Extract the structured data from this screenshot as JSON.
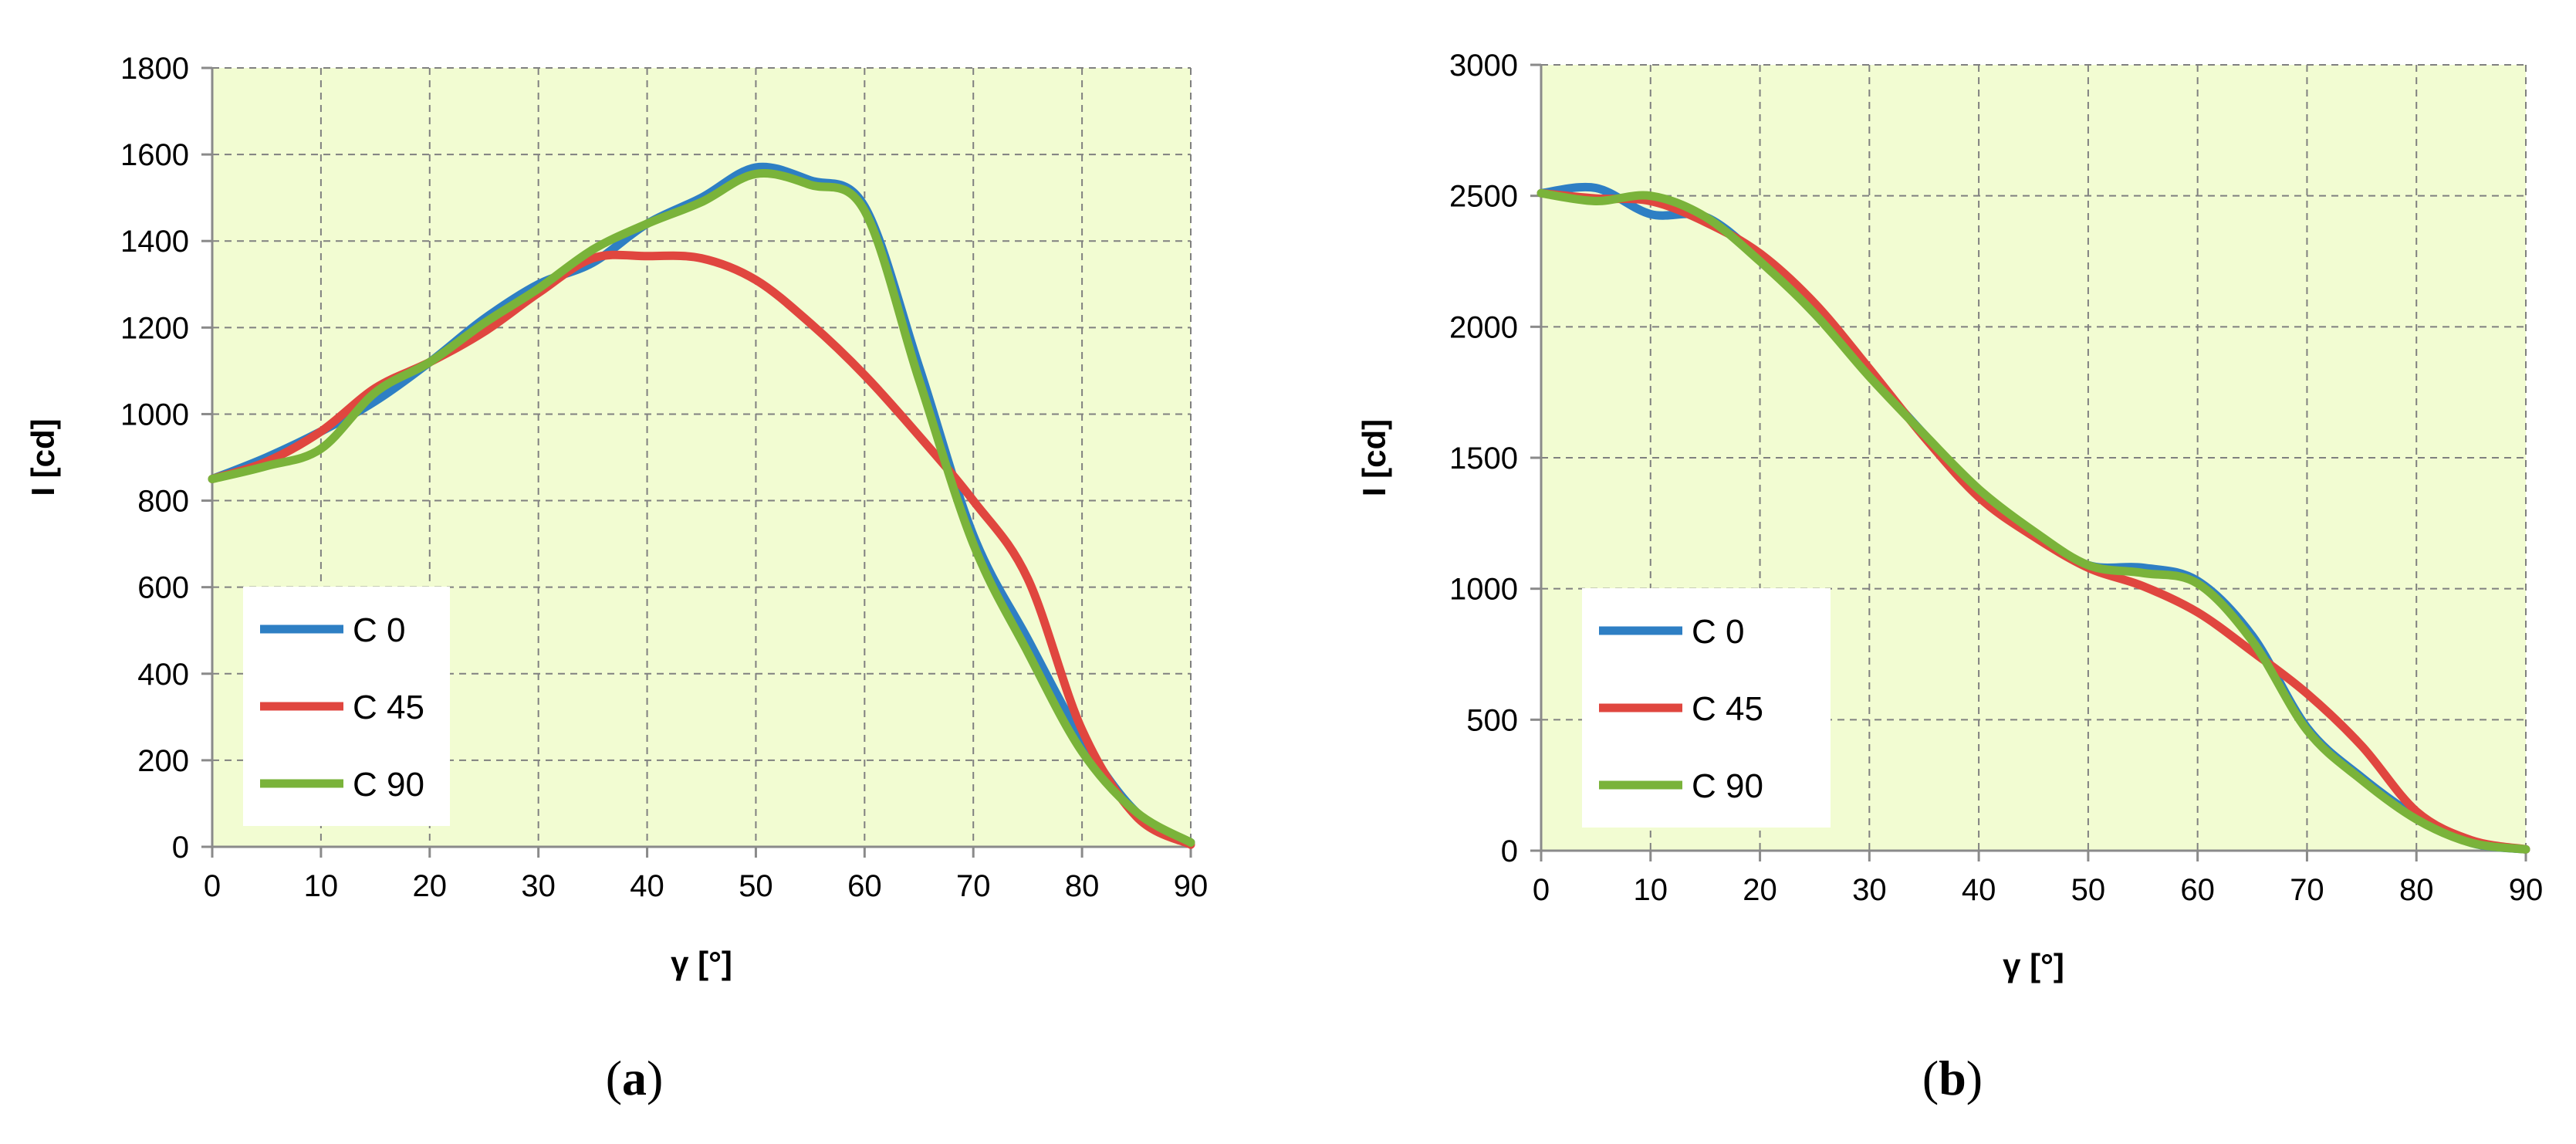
{
  "chart_data": [
    {
      "type": "line",
      "panel_label": "a",
      "xlabel": "γ [°]",
      "ylabel": "I [cd]",
      "xlim": [
        0,
        90
      ],
      "ylim": [
        0,
        1800
      ],
      "xticks": [
        "0",
        "10",
        "20",
        "30",
        "40",
        "50",
        "60",
        "70",
        "80",
        "90"
      ],
      "yticks": [
        "0",
        "200",
        "400",
        "600",
        "800",
        "1000",
        "1200",
        "1400",
        "1600",
        "1800"
      ],
      "grid": true,
      "legend_position": "bottom-left",
      "x": [
        0,
        5,
        10,
        15,
        20,
        25,
        30,
        35,
        40,
        45,
        50,
        55,
        60,
        65,
        70,
        75,
        80,
        85,
        90
      ],
      "series": [
        {
          "name": "C 0",
          "color": "#2e7fc4",
          "values": [
            850,
            900,
            960,
            1030,
            1120,
            1220,
            1300,
            1350,
            1440,
            1500,
            1570,
            1540,
            1480,
            1110,
            720,
            480,
            250,
            80,
            10
          ]
        },
        {
          "name": "C 45",
          "color": "#e0463f",
          "values": [
            850,
            890,
            960,
            1060,
            1120,
            1190,
            1280,
            1360,
            1365,
            1360,
            1310,
            1210,
            1090,
            950,
            800,
            620,
            270,
            70,
            5
          ]
        },
        {
          "name": "C 90",
          "color": "#7ab33a",
          "values": [
            850,
            880,
            920,
            1050,
            1120,
            1210,
            1290,
            1380,
            1440,
            1490,
            1555,
            1530,
            1470,
            1080,
            700,
            450,
            220,
            80,
            10
          ]
        }
      ]
    },
    {
      "type": "line",
      "panel_label": "b",
      "xlabel": "γ [°]",
      "ylabel": "I [cd]",
      "xlim": [
        0,
        90
      ],
      "ylim": [
        0,
        3000
      ],
      "xticks": [
        "0",
        "10",
        "20",
        "30",
        "40",
        "50",
        "60",
        "70",
        "80",
        "90"
      ],
      "yticks": [
        "0",
        "500",
        "1000",
        "1500",
        "2000",
        "2500",
        "3000"
      ],
      "grid": true,
      "legend_position": "bottom-left",
      "x": [
        0,
        5,
        10,
        15,
        20,
        25,
        30,
        35,
        40,
        45,
        50,
        55,
        60,
        65,
        70,
        75,
        80,
        85,
        90
      ],
      "series": [
        {
          "name": "C 0",
          "color": "#2e7fc4",
          "values": [
            2510,
            2530,
            2430,
            2420,
            2260,
            2050,
            1820,
            1590,
            1370,
            1210,
            1090,
            1080,
            1030,
            820,
            470,
            280,
            130,
            30,
            5
          ]
        },
        {
          "name": "C 45",
          "color": "#e0463f",
          "values": [
            2510,
            2490,
            2480,
            2400,
            2280,
            2090,
            1840,
            1580,
            1350,
            1200,
            1080,
            1010,
            910,
            760,
            600,
            400,
            150,
            40,
            5
          ]
        },
        {
          "name": "C 90",
          "color": "#7ab33a",
          "values": [
            2510,
            2480,
            2500,
            2420,
            2250,
            2050,
            1810,
            1590,
            1380,
            1220,
            1090,
            1060,
            1020,
            800,
            460,
            270,
            120,
            30,
            5
          ]
        }
      ]
    }
  ]
}
